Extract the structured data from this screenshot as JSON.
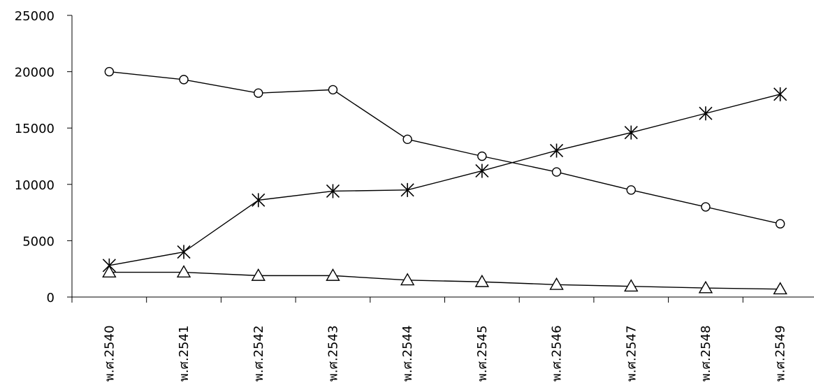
{
  "chart_data": {
    "type": "line",
    "categories": [
      "พ.ศ.2540",
      "พ.ศ.2541",
      "พ.ศ.2542",
      "พ.ศ.2543",
      "พ.ศ.2544",
      "พ.ศ.2545",
      "พ.ศ.2546",
      "พ.ศ.2547",
      "พ.ศ.2548",
      "พ.ศ.2549"
    ],
    "ylim": [
      0,
      25000
    ],
    "yticks": [
      0,
      5000,
      10000,
      15000,
      20000,
      25000
    ],
    "grid": false,
    "series": [
      {
        "marker": "circle",
        "values": [
          20000,
          19300,
          18100,
          18400,
          14000,
          12500,
          11100,
          9500,
          8000,
          6500
        ]
      },
      {
        "marker": "asterisk",
        "values": [
          2800,
          4000,
          8600,
          9400,
          9500,
          11200,
          13000,
          14600,
          16300,
          18000
        ]
      },
      {
        "marker": "triangle",
        "values": [
          2200,
          2200,
          1900,
          1900,
          1500,
          1350,
          1100,
          950,
          800,
          700
        ]
      }
    ]
  }
}
